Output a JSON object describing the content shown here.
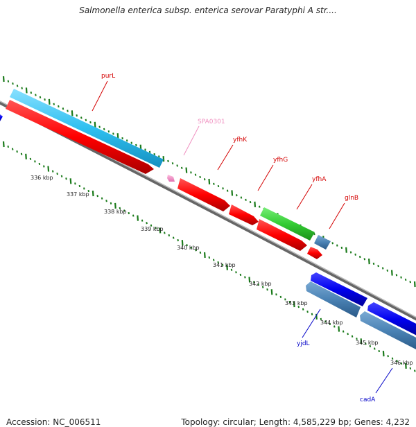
{
  "title": "Salmonella enterica subsp. enterica serovar Paratyphi A str....",
  "footer": {
    "accession": "Accession: NC_006511",
    "topology": "Topology: circular; Length: 4,585,229 bp; Genes: 4,232"
  },
  "scale": {
    "ticks": [
      "336 kbp",
      "337 kbp",
      "338 kbp",
      "339 kbp",
      "340 kbp",
      "341 kbp",
      "342 kbp",
      "343 kbp",
      "344 kbp",
      "345 kbp",
      "346 kbp"
    ]
  },
  "genes": [
    {
      "name": "purL",
      "color": "#d40000",
      "strand": "forward"
    },
    {
      "name": "SPA0301",
      "color": "#f090c0",
      "strand": "forward"
    },
    {
      "name": "yfhK",
      "color": "#d40000",
      "strand": "forward"
    },
    {
      "name": "yfhG",
      "color": "#d40000",
      "strand": "forward"
    },
    {
      "name": "yfhA",
      "color": "#d40000",
      "strand": "forward"
    },
    {
      "name": "glnB",
      "color": "#d40000",
      "strand": "forward"
    },
    {
      "name": "yjdL",
      "color": "#0000c8",
      "strand": "reverse"
    },
    {
      "name": "cadA",
      "color": "#0000c8",
      "strand": "reverse"
    }
  ],
  "colors": {
    "cds_forward": "#ff0000",
    "cds_reverse": "#0000ee",
    "gene_cyan": "#33c4f0",
    "gene_green": "#33cc33",
    "gene_steelblue": "#4a82b4",
    "backbone": "#888888",
    "gc_dots": "#1a7a1a"
  }
}
